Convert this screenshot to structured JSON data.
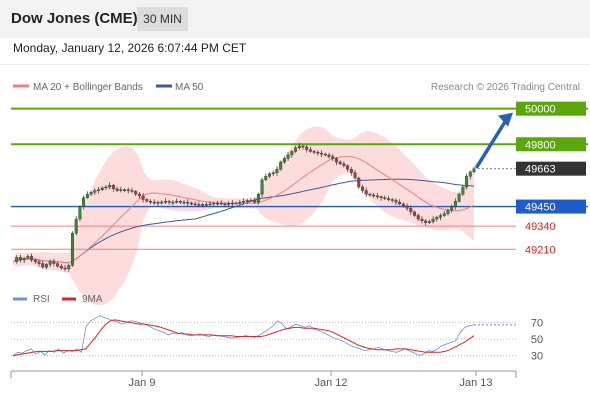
{
  "header": {
    "title": "Dow Jones (CME)",
    "timeframe": "30 MIN",
    "datetime": "Monday, January 12, 2026 6:07:44 PM CET"
  },
  "colors": {
    "bollinger_band": "#fcdcdc",
    "ma20": "#f08080",
    "ma50": "#3a5a9a",
    "resistance": "#5ba60a",
    "support": "#1f5cc8",
    "support_light": "#f08080",
    "last_price": "#333333",
    "arrow": "#2a5fb0",
    "candle_up": "#3a8a3a",
    "candle_down": "#b04040",
    "rsi": "#6e8fe0",
    "rsi_ma": "#e0202a"
  },
  "chart_data": [
    {
      "type": "candlestick",
      "title": "",
      "legend": [
        "MA 20 + Bollinger Bands",
        "MA 50"
      ],
      "legend_placement": "top-left",
      "credit": "Research © 2026 Trading Central",
      "x_tick_labels": [
        "Jan 9",
        "Jan 12",
        "Jan 13"
      ],
      "levels": [
        {
          "value": 50000,
          "label": "50000",
          "kind": "resistance"
        },
        {
          "value": 49800,
          "label": "49800",
          "kind": "resistance"
        },
        {
          "value": 49663,
          "label": "49663",
          "kind": "last"
        },
        {
          "value": 49450,
          "label": "49450",
          "kind": "support"
        },
        {
          "value": 49340,
          "label": "49340",
          "kind": "support_light"
        },
        {
          "value": 49210,
          "label": "49210",
          "kind": "support_light"
        }
      ],
      "price_path": [
        49140,
        49165,
        49150,
        49160,
        49170,
        49150,
        49140,
        49130,
        49110,
        49125,
        49140,
        49130,
        49115,
        49105,
        49100,
        49120,
        49300,
        49380,
        49450,
        49500,
        49520,
        49530,
        49540,
        49545,
        49555,
        49560,
        49570,
        49550,
        49540,
        49545,
        49545,
        49540,
        49535,
        49520,
        49510,
        49490,
        49480,
        49475,
        49475,
        49470,
        49475,
        49480,
        49475,
        49475,
        49480,
        49475,
        49475,
        49470,
        49465,
        49460,
        49462,
        49462,
        49460,
        49465,
        49470,
        49470,
        49465,
        49462,
        49468,
        49470,
        49470,
        49475,
        49480,
        49485,
        49485,
        49475,
        49520,
        49600,
        49620,
        49635,
        49640,
        49660,
        49700,
        49720,
        49740,
        49760,
        49780,
        49790,
        49785,
        49770,
        49760,
        49755,
        49750,
        49745,
        49740,
        49730,
        49720,
        49700,
        49690,
        49680,
        49660,
        49640,
        49610,
        49560,
        49540,
        49520,
        49515,
        49510,
        49505,
        49500,
        49495,
        49490,
        49485,
        49475,
        49465,
        49455,
        49440,
        49420,
        49400,
        49380,
        49370,
        49360,
        49365,
        49380,
        49390,
        49400,
        49410,
        49430,
        49450,
        49480,
        49520,
        49560,
        49620,
        49645,
        49663
      ],
      "projection": {
        "from": 49663,
        "to": 50000
      },
      "ylim": [
        49060,
        50060
      ]
    },
    {
      "type": "line",
      "title": "",
      "legend": [
        "RSI",
        "9MA"
      ],
      "legend_placement": "top-left",
      "y_tick_labels": [
        "70",
        "50",
        "30"
      ],
      "ylim": [
        15,
        85
      ],
      "rsi_path": [
        30,
        34,
        33,
        36,
        38,
        32,
        35,
        31,
        36,
        34,
        38,
        33,
        36,
        35,
        38,
        34,
        65,
        72,
        75,
        78,
        76,
        74,
        72,
        70,
        68,
        70,
        72,
        71,
        69,
        68,
        65,
        62,
        60,
        58,
        55,
        57,
        56,
        58,
        55,
        54,
        55,
        56,
        54,
        53,
        55,
        54,
        53,
        52,
        51,
        52,
        53,
        54,
        53,
        52,
        55,
        58,
        62,
        66,
        72,
        68,
        62,
        65,
        68,
        66,
        64,
        66,
        62,
        60,
        58,
        55,
        52,
        50,
        48,
        45,
        42,
        40,
        38,
        36,
        37,
        38,
        40,
        38,
        36,
        35,
        34,
        36,
        38,
        35,
        33,
        30,
        32,
        36,
        35,
        38,
        42,
        44,
        46,
        48,
        58,
        64,
        66,
        67
      ],
      "rsi_ma_path": [
        30,
        31,
        32,
        33,
        34,
        35,
        35,
        35,
        35,
        36,
        36,
        36,
        36,
        36,
        37,
        38,
        45,
        52,
        60,
        67,
        72,
        73,
        72,
        71,
        70,
        69,
        68,
        68,
        67,
        66,
        65,
        63,
        61,
        59,
        57,
        56,
        56,
        55,
        55,
        55,
        55,
        55,
        54,
        54,
        54,
        54,
        53,
        53,
        53,
        53,
        53,
        53,
        54,
        56,
        58,
        60,
        62,
        63,
        64,
        64,
        63,
        63,
        63,
        62,
        61,
        60,
        58,
        55,
        52,
        49,
        46,
        43,
        41,
        39,
        38,
        37,
        37,
        37,
        37,
        38,
        38,
        38,
        37,
        36,
        35,
        34,
        34,
        34,
        34,
        35,
        37,
        40,
        43,
        46,
        50,
        54
      ]
    }
  ]
}
